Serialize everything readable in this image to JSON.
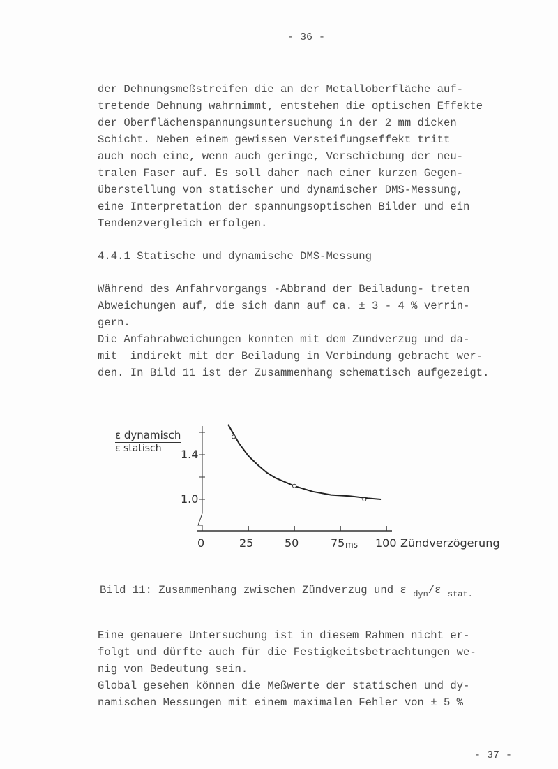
{
  "page_number_top": "- 36 -",
  "page_number_bottom": "- 37 -",
  "paragraph1": [
    "der Dehnungsmeßstreifen die an der Metalloberfläche auf-",
    "tretende Dehnung wahrnimmt, entstehen die optischen Effekte",
    "der Oberflächenspannungsuntersuchung in der 2 mm dicken",
    "Schicht. Neben einem gewissen Versteifungseffekt tritt",
    "auch noch eine, wenn auch geringe, Verschiebung der neu-",
    "tralen Faser auf. Es soll daher nach einer kurzen Gegen-",
    "überstellung von statischer und dynamischer DMS-Messung,",
    "eine Interpretation der spannungsoptischen Bilder und ein",
    "Tendenzvergleich erfolgen."
  ],
  "heading": "4.4.1 Statische und dynamische DMS-Messung",
  "paragraph2": [
    "Während des Anfahrvorgangs -Abbrand der Beiladung- treten",
    "Abweichungen auf, die sich dann auf ca. ± 3 - 4 % verrin-",
    "gern.",
    "Die Anfahrabweichungen konnten mit dem Zündverzug und da-",
    "mit  indirekt mit der Beiladung in Verbindung gebracht wer-",
    "den. In Bild 11 ist der Zusammenhang schematisch aufgezeigt."
  ],
  "caption": {
    "prefix": "Bild 11: Zusammenhang zwischen Zündverzug und ε",
    "sub1": "dyn",
    "slash": "/ε",
    "sub2": "stat."
  },
  "paragraph3": [
    "Eine genauere Untersuchung ist in diesem Rahmen nicht er-",
    "folgt und dürfte auch für die Festigkeitsbetrachtungen we-",
    "nig von Bedeutung sein.",
    "Global gesehen können die Meßwerte der statischen und dy-",
    "namischen Messungen mit einem maximalen Fehler von ± 5 %"
  ],
  "chart_data": {
    "type": "line",
    "ylabel_numerator": "ε dynamisch",
    "ylabel_denominator": "ε statisch",
    "xlabel": "Zündverzögerung",
    "x_unit": "ms",
    "x_ticks": [
      "0",
      "25",
      "50",
      "75",
      "100"
    ],
    "y_ticks": [
      "1.4",
      "1.0"
    ],
    "xlim": [
      0,
      100
    ],
    "ylim": [
      0.85,
      1.7
    ],
    "y_axis_break": true,
    "curve": {
      "x": [
        14,
        20,
        25,
        30,
        35,
        40,
        50,
        60,
        70,
        80,
        90,
        97
      ],
      "y": [
        1.67,
        1.5,
        1.39,
        1.31,
        1.24,
        1.19,
        1.12,
        1.07,
        1.04,
        1.03,
        1.01,
        1.0
      ]
    },
    "markers": {
      "x": [
        17,
        50,
        88
      ],
      "y": [
        1.56,
        1.12,
        1.0
      ]
    }
  }
}
